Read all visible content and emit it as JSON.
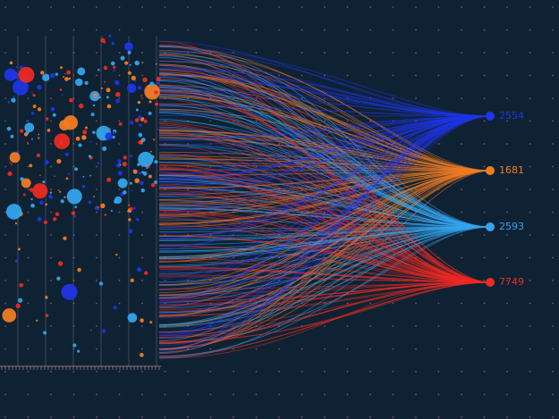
{
  "nodes": [
    {
      "label": "2554",
      "color": "#1f35e6"
    },
    {
      "label": "1681",
      "color": "#f17c22"
    },
    {
      "label": "2593",
      "color": "#34a4ec"
    },
    {
      "label": "7749",
      "color": "#ec2a22"
    }
  ]
}
